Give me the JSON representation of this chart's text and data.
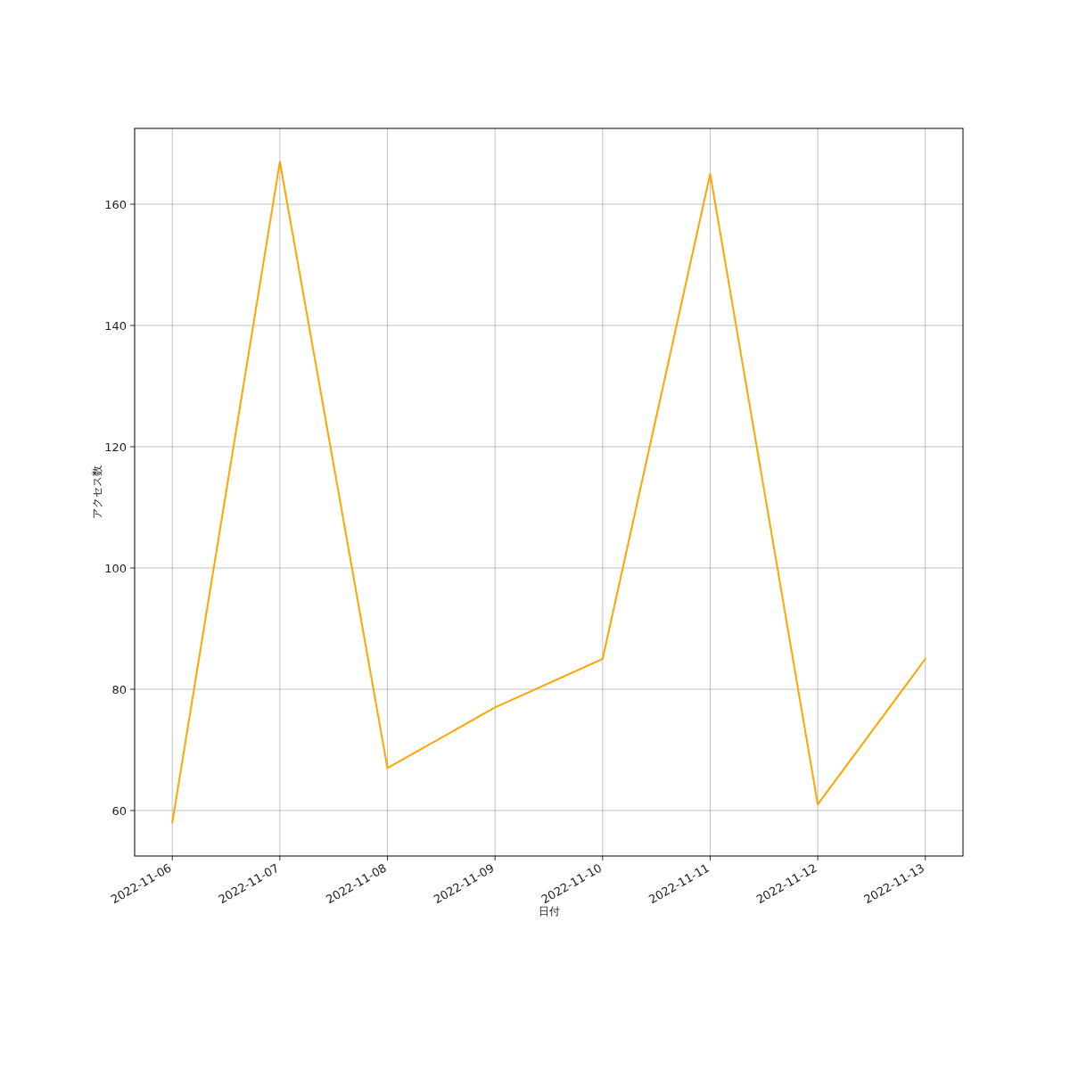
{
  "chart_data": {
    "type": "line",
    "xlabel": "日付",
    "ylabel": "アクセス数",
    "x": [
      "2022-11-06",
      "2022-11-07",
      "2022-11-08",
      "2022-11-09",
      "2022-11-10",
      "2022-11-11",
      "2022-11-12",
      "2022-11-13"
    ],
    "series": [
      {
        "color": "#ffa500",
        "values": [
          58,
          167,
          67,
          77,
          85,
          165,
          61,
          85
        ]
      }
    ],
    "xlim": [
      "2022-11-05T15:36",
      "2022-11-13T08:24"
    ],
    "xticks": [
      "2022-11-06",
      "2022-11-07",
      "2022-11-08",
      "2022-11-09",
      "2022-11-10",
      "2022-11-11",
      "2022-11-12",
      "2022-11-13"
    ],
    "ylim": [
      52.5,
      172.5
    ],
    "yticks": [
      60,
      80,
      100,
      120,
      140,
      160
    ],
    "grid": true
  }
}
